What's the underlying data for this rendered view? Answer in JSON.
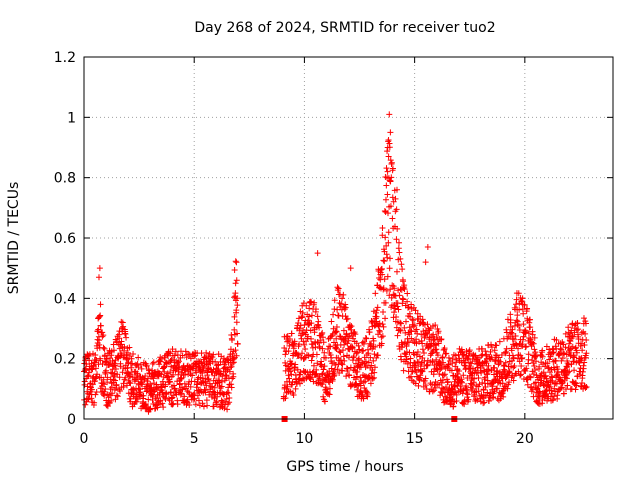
{
  "chart_data": {
    "type": "scatter",
    "title": "Day 268 of 2024, SRMTID for receiver tuo2",
    "xlabel": "GPS time / hours",
    "ylabel": "SRMTID / TECUs",
    "xlim": [
      0,
      24
    ],
    "ylim": [
      0,
      1.2
    ],
    "x_ticks": [
      0,
      5,
      10,
      15,
      20
    ],
    "y_ticks": [
      0,
      0.2,
      0.4,
      0.6,
      0.8,
      1,
      1.2
    ],
    "x_tick_labels": [
      "0",
      "5",
      "10",
      "15",
      "20"
    ],
    "y_tick_labels": [
      "0",
      "0.2",
      "0.4",
      "0.6",
      "0.8",
      "1",
      "1.2"
    ],
    "grid": true,
    "marker": "+",
    "marker_color": "#ff0000",
    "step_hours": 0.0083333,
    "gap_hours": [
      6.98,
      9.05
    ],
    "end_hours": 22.8,
    "zero_value_markers": [
      9.1,
      16.8
    ],
    "series": [
      {
        "name": "SRMTID",
        "envelope": [
          {
            "x": 0.0,
            "y": 0.12
          },
          {
            "x": 0.5,
            "y": 0.14
          },
          {
            "x": 0.7,
            "y": 0.25
          },
          {
            "x": 1.0,
            "y": 0.12
          },
          {
            "x": 1.5,
            "y": 0.17
          },
          {
            "x": 1.8,
            "y": 0.23
          },
          {
            "x": 2.2,
            "y": 0.13
          },
          {
            "x": 3.0,
            "y": 0.1
          },
          {
            "x": 4.0,
            "y": 0.14
          },
          {
            "x": 5.0,
            "y": 0.13
          },
          {
            "x": 6.0,
            "y": 0.13
          },
          {
            "x": 6.6,
            "y": 0.11
          },
          {
            "x": 6.85,
            "y": 0.35
          },
          {
            "x": 6.97,
            "y": 0.38
          },
          {
            "x": 9.05,
            "y": 0.17
          },
          {
            "x": 9.5,
            "y": 0.18
          },
          {
            "x": 10.0,
            "y": 0.27
          },
          {
            "x": 10.5,
            "y": 0.25
          },
          {
            "x": 11.0,
            "y": 0.14
          },
          {
            "x": 11.5,
            "y": 0.3
          },
          {
            "x": 12.0,
            "y": 0.25
          },
          {
            "x": 12.5,
            "y": 0.14
          },
          {
            "x": 13.0,
            "y": 0.2
          },
          {
            "x": 13.5,
            "y": 0.4
          },
          {
            "x": 13.8,
            "y": 0.7
          },
          {
            "x": 14.1,
            "y": 0.55
          },
          {
            "x": 14.5,
            "y": 0.3
          },
          {
            "x": 15.0,
            "y": 0.25
          },
          {
            "x": 15.5,
            "y": 0.2
          },
          {
            "x": 16.0,
            "y": 0.2
          },
          {
            "x": 16.5,
            "y": 0.12
          },
          {
            "x": 17.0,
            "y": 0.14
          },
          {
            "x": 18.0,
            "y": 0.14
          },
          {
            "x": 19.0,
            "y": 0.17
          },
          {
            "x": 19.7,
            "y": 0.3
          },
          {
            "x": 20.2,
            "y": 0.23
          },
          {
            "x": 20.6,
            "y": 0.13
          },
          {
            "x": 21.5,
            "y": 0.17
          },
          {
            "x": 22.0,
            "y": 0.2
          },
          {
            "x": 22.8,
            "y": 0.22
          }
        ],
        "spikes": [
          {
            "x": 0.72,
            "y": 0.5
          },
          {
            "x": 0.68,
            "y": 0.47
          },
          {
            "x": 0.75,
            "y": 0.38
          },
          {
            "x": 6.93,
            "y": 0.46
          },
          {
            "x": 6.88,
            "y": 0.45
          },
          {
            "x": 10.6,
            "y": 0.55
          },
          {
            "x": 12.1,
            "y": 0.5
          },
          {
            "x": 13.85,
            "y": 1.01
          },
          {
            "x": 13.9,
            "y": 0.95
          },
          {
            "x": 13.78,
            "y": 0.9
          },
          {
            "x": 13.82,
            "y": 0.87
          },
          {
            "x": 13.75,
            "y": 0.8
          },
          {
            "x": 13.88,
            "y": 0.79
          },
          {
            "x": 14.2,
            "y": 0.76
          },
          {
            "x": 14.05,
            "y": 0.72
          },
          {
            "x": 15.6,
            "y": 0.57
          },
          {
            "x": 15.5,
            "y": 0.52
          },
          {
            "x": 19.9,
            "y": 0.4
          }
        ]
      }
    ]
  }
}
